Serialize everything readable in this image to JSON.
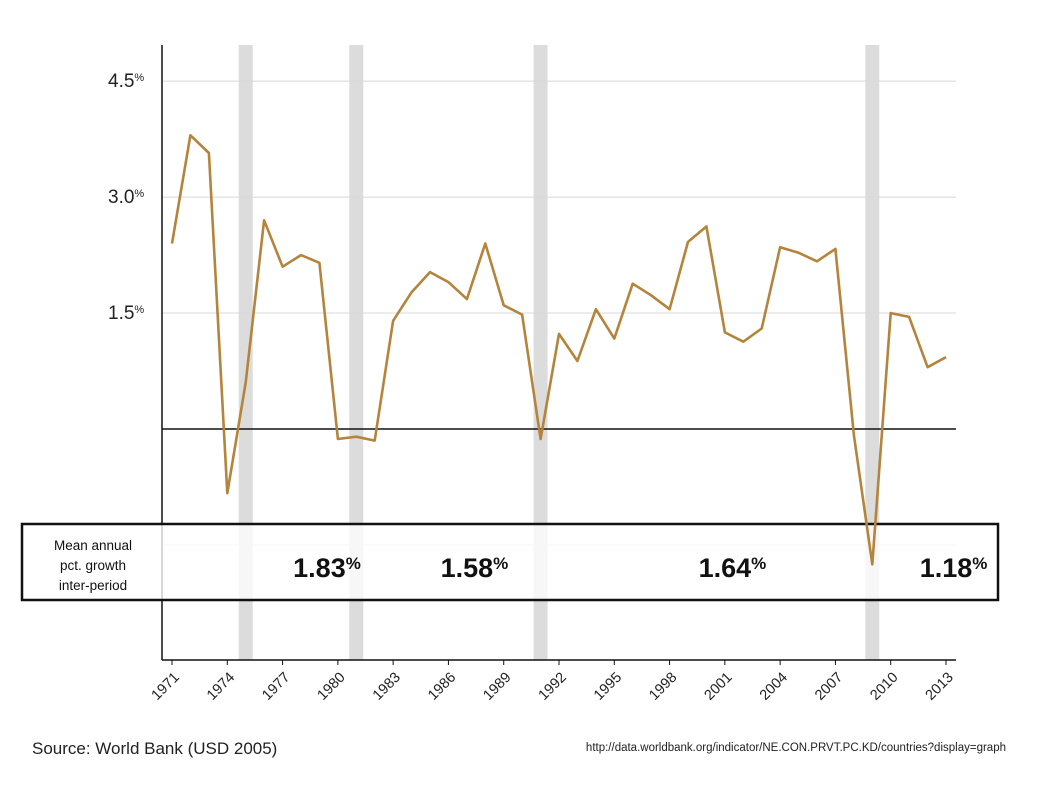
{
  "chart_data": {
    "type": "line",
    "x": [
      1971,
      1972,
      1973,
      1974,
      1975,
      1976,
      1977,
      1978,
      1979,
      1980,
      1981,
      1982,
      1983,
      1984,
      1985,
      1986,
      1987,
      1988,
      1989,
      1990,
      1991,
      1992,
      1993,
      1994,
      1995,
      1996,
      1997,
      1998,
      1999,
      2000,
      2001,
      2002,
      2003,
      2004,
      2005,
      2006,
      2007,
      2008,
      2009,
      2010,
      2011,
      2012,
      2013
    ],
    "series": [
      {
        "values": [
          2.4,
          3.8,
          3.57,
          -0.83,
          0.6,
          2.7,
          2.1,
          2.25,
          2.15,
          -0.13,
          -0.1,
          -0.15,
          1.4,
          1.77,
          2.03,
          1.9,
          1.68,
          2.4,
          1.6,
          1.48,
          -0.13,
          1.23,
          0.88,
          1.55,
          1.17,
          1.88,
          1.73,
          1.55,
          2.42,
          2.62,
          1.25,
          1.13,
          1.3,
          2.35,
          2.28,
          2.17,
          2.33,
          -0.08,
          -1.75,
          1.5,
          1.45,
          0.8,
          0.93
        ]
      }
    ],
    "yticks": [
      {
        "value": 4.5,
        "label": "4.5"
      },
      {
        "value": 3.0,
        "label": "3.0"
      },
      {
        "value": 1.5,
        "label": "1.5"
      }
    ],
    "ytick_unit": "%",
    "ylim": [
      -3.0,
      5.0
    ],
    "xticks": [
      "1971",
      "1974",
      "1977",
      "1980",
      "1983",
      "1986",
      "1989",
      "1992",
      "1995",
      "1998",
      "2001",
      "2004",
      "2007",
      "2010",
      "2013"
    ],
    "xlim": [
      1971,
      2013
    ],
    "zero_line": 0,
    "recession_years": [
      1975,
      1981,
      1991,
      2009
    ],
    "line_color": "#b5843c",
    "band_color": "#dcdcdc",
    "grid": true,
    "legend": "none",
    "period_box": {
      "label_lines": [
        "Mean annual",
        "pct. growth",
        "inter-period"
      ],
      "periods": [
        {
          "value": "1.83",
          "center_year": 1978
        },
        {
          "value": "1.58",
          "center_year": 1986
        },
        {
          "value": "1.64",
          "center_year": 2000
        },
        {
          "value": "1.18",
          "center_year": 2012
        }
      ],
      "unit": "%"
    }
  },
  "footer": {
    "source": "Source: World Bank (USD 2005)",
    "url": "http://data.worldbank.org/indicator/NE.CON.PRVT.PC.KD/countries?display=graph"
  }
}
